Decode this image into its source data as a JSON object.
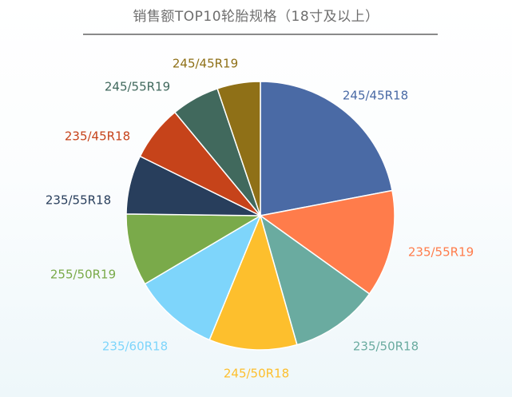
{
  "chart_data": {
    "type": "pie",
    "title": "销售额TOP10轮胎规格（18寸及以上）",
    "categories": [
      "245/45R18",
      "235/55R19",
      "235/50R18",
      "245/50R18",
      "235/60R18",
      "255/50R19",
      "235/55R18",
      "235/45R18",
      "245/55R19",
      "245/45R19"
    ],
    "values": [
      22.0,
      12.9,
      10.7,
      10.6,
      10.3,
      8.7,
      7.1,
      6.7,
      5.8,
      5.2
    ],
    "unit": "%",
    "colors": [
      "#4a6aa5",
      "#ff7c4b",
      "#6aaba0",
      "#fdbf2d",
      "#7ed5fb",
      "#7aaa4a",
      "#283e5c",
      "#c6431a",
      "#41695d",
      "#8f7017"
    ],
    "legend": "none",
    "labels_position": "outside"
  }
}
